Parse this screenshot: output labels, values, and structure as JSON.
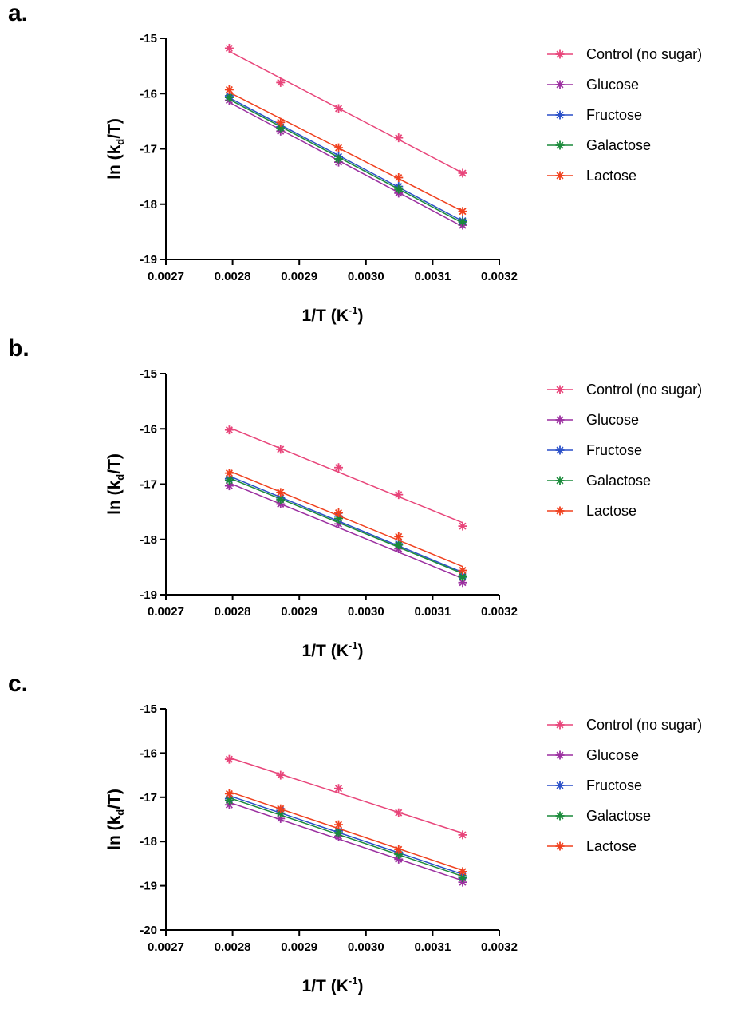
{
  "chart_data": [
    {
      "panel_label": "a.",
      "type": "scatter",
      "xlabel": "1/T (K",
      "xlabel_sup": "-1",
      "xlabel_close": ")",
      "ylabel_pre": "ln (k",
      "ylabel_sub": "d",
      "ylabel_post": "/T)",
      "xlim": [
        0.0027,
        0.0032
      ],
      "ylim": [
        -19,
        -15
      ],
      "xticks": [
        "0.0027",
        "0.0028",
        "0.0029",
        "0.0030",
        "0.0031",
        "0.0032"
      ],
      "yticks": [
        "-19",
        "-18",
        "-17",
        "-16",
        "-15"
      ],
      "x": [
        0.002795,
        0.002872,
        0.002959,
        0.003049,
        0.003145
      ],
      "legend_position": "right",
      "series": [
        {
          "name": "Control (no sugar)",
          "color": "#e8457a",
          "values": [
            -15.18,
            -15.8,
            -16.27,
            -16.8,
            -17.44
          ]
        },
        {
          "name": "Glucose",
          "color": "#9b2fa0",
          "values": [
            -16.12,
            -16.68,
            -17.24,
            -17.8,
            -18.38
          ]
        },
        {
          "name": "Fructose",
          "color": "#2a4fc8",
          "values": [
            -16.04,
            -16.6,
            -17.14,
            -17.68,
            -18.3
          ]
        },
        {
          "name": "Galactose",
          "color": "#1a8a3a",
          "values": [
            -16.07,
            -16.62,
            -17.18,
            -17.73,
            -18.32
          ]
        },
        {
          "name": "Lactose",
          "color": "#f0401e",
          "values": [
            -15.93,
            -16.52,
            -16.98,
            -17.52,
            -18.13
          ]
        }
      ]
    },
    {
      "panel_label": "b.",
      "type": "scatter",
      "xlabel": "1/T (K",
      "xlabel_sup": "-1",
      "xlabel_close": ")",
      "ylabel_pre": "ln (k",
      "ylabel_sub": "d",
      "ylabel_post": "/T)",
      "xlim": [
        0.0027,
        0.0032
      ],
      "ylim": [
        -19,
        -15
      ],
      "xticks": [
        "0.0027",
        "0.0028",
        "0.0029",
        "0.0030",
        "0.0031",
        "0.0032"
      ],
      "yticks": [
        "-19",
        "-18",
        "-17",
        "-16",
        "-15"
      ],
      "x": [
        0.002795,
        0.002872,
        0.002959,
        0.003049,
        0.003145
      ],
      "legend_position": "right",
      "series": [
        {
          "name": "Control (no sugar)",
          "color": "#e8457a",
          "values": [
            -16.02,
            -16.37,
            -16.7,
            -17.19,
            -17.76
          ]
        },
        {
          "name": "Glucose",
          "color": "#9b2fa0",
          "values": [
            -17.03,
            -17.36,
            -17.72,
            -18.17,
            -18.78
          ]
        },
        {
          "name": "Fructose",
          "color": "#2a4fc8",
          "values": [
            -16.9,
            -17.25,
            -17.58,
            -18.08,
            -18.66
          ]
        },
        {
          "name": "Galactose",
          "color": "#1a8a3a",
          "values": [
            -16.93,
            -17.28,
            -17.62,
            -18.1,
            -18.68
          ]
        },
        {
          "name": "Lactose",
          "color": "#f0401e",
          "values": [
            -16.8,
            -17.15,
            -17.52,
            -17.95,
            -18.56
          ]
        }
      ]
    },
    {
      "panel_label": "c.",
      "type": "scatter",
      "xlabel": "1/T (K",
      "xlabel_sup": "-1",
      "xlabel_close": ")",
      "ylabel_pre": "ln (k",
      "ylabel_sub": "d",
      "ylabel_post": "/T)",
      "xlim": [
        0.0027,
        0.0032
      ],
      "ylim": [
        -20,
        -15
      ],
      "xticks": [
        "0.0027",
        "0.0028",
        "0.0029",
        "0.0030",
        "0.0031",
        "0.0032"
      ],
      "yticks": [
        "-20",
        "-19",
        "-18",
        "-17",
        "-16",
        "-15"
      ],
      "x": [
        0.002795,
        0.002872,
        0.002959,
        0.003049,
        0.003145
      ],
      "legend_position": "right",
      "series": [
        {
          "name": "Control (no sugar)",
          "color": "#e8457a",
          "values": [
            -16.14,
            -16.5,
            -16.8,
            -17.35,
            -17.85
          ]
        },
        {
          "name": "Glucose",
          "color": "#9b2fa0",
          "values": [
            -17.17,
            -17.48,
            -17.88,
            -18.4,
            -18.92
          ]
        },
        {
          "name": "Fructose",
          "color": "#2a4fc8",
          "values": [
            -17.03,
            -17.3,
            -17.76,
            -18.24,
            -18.78
          ]
        },
        {
          "name": "Galactose",
          "color": "#1a8a3a",
          "values": [
            -17.07,
            -17.36,
            -17.8,
            -18.29,
            -18.82
          ]
        },
        {
          "name": "Lactose",
          "color": "#f0401e",
          "values": [
            -16.92,
            -17.26,
            -17.62,
            -18.18,
            -18.68
          ]
        }
      ]
    }
  ]
}
